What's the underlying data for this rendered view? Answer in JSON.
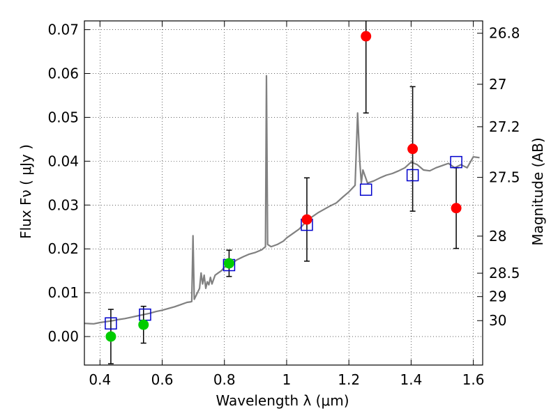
{
  "chart_data": {
    "type": "scatter",
    "xlabel": "Wavelength  λ (μm)",
    "ylabel": "Flux  Fν  ( μJy )",
    "ylabel_right": "Magnitude (AB)",
    "xlim": [
      0.35,
      1.63
    ],
    "ylim": [
      -0.0065,
      0.072
    ],
    "x_ticks": [
      0.4,
      0.6,
      0.8,
      1.0,
      1.2,
      1.4,
      1.6
    ],
    "x_tick_labels": [
      "0.4",
      "0.6",
      "0.8",
      "1",
      "1.2",
      "1.4",
      "1.6"
    ],
    "y_ticks": [
      0.0,
      0.01,
      0.02,
      0.03,
      0.04,
      0.05,
      0.06,
      0.07
    ],
    "y_tick_labels": [
      "0.00",
      "0.01",
      "0.02",
      "0.03",
      "0.04",
      "0.05",
      "0.06",
      "0.07"
    ],
    "magnitude_ticks": [
      26.8,
      27.0,
      27.2,
      27.5,
      28.0,
      28.5,
      29.0,
      30.0
    ],
    "magnitude_tick_labels": [
      "26.8",
      "27",
      "27.2",
      "27.5",
      "28",
      "28.5",
      "29",
      "30"
    ],
    "grid": true,
    "series": [
      {
        "kind": "line",
        "color": "#808080",
        "points": [
          [
            0.35,
            0.003
          ],
          [
            0.38,
            0.0029
          ],
          [
            0.4,
            0.0032
          ],
          [
            0.42,
            0.0034
          ],
          [
            0.44,
            0.0036
          ],
          [
            0.46,
            0.0039
          ],
          [
            0.48,
            0.0041
          ],
          [
            0.5,
            0.0044
          ],
          [
            0.52,
            0.0047
          ],
          [
            0.54,
            0.005
          ],
          [
            0.56,
            0.0053
          ],
          [
            0.58,
            0.0057
          ],
          [
            0.6,
            0.006
          ],
          [
            0.62,
            0.0064
          ],
          [
            0.64,
            0.0068
          ],
          [
            0.66,
            0.0073
          ],
          [
            0.68,
            0.0078
          ],
          [
            0.69,
            0.0079
          ],
          [
            0.695,
            0.008
          ],
          [
            0.699,
            0.023
          ],
          [
            0.703,
            0.0085
          ],
          [
            0.71,
            0.0095
          ],
          [
            0.72,
            0.011
          ],
          [
            0.725,
            0.0145
          ],
          [
            0.73,
            0.012
          ],
          [
            0.735,
            0.014
          ],
          [
            0.74,
            0.011
          ],
          [
            0.745,
            0.0125
          ],
          [
            0.75,
            0.0118
          ],
          [
            0.755,
            0.0135
          ],
          [
            0.76,
            0.012
          ],
          [
            0.77,
            0.014
          ],
          [
            0.78,
            0.0145
          ],
          [
            0.79,
            0.015
          ],
          [
            0.8,
            0.0158
          ],
          [
            0.82,
            0.0165
          ],
          [
            0.84,
            0.0175
          ],
          [
            0.86,
            0.0182
          ],
          [
            0.88,
            0.0188
          ],
          [
            0.9,
            0.0192
          ],
          [
            0.92,
            0.0198
          ],
          [
            0.932,
            0.0205
          ],
          [
            0.935,
            0.0595
          ],
          [
            0.939,
            0.021
          ],
          [
            0.95,
            0.0205
          ],
          [
            0.97,
            0.021
          ],
          [
            0.99,
            0.0218
          ],
          [
            1.0,
            0.0225
          ],
          [
            1.02,
            0.0235
          ],
          [
            1.04,
            0.0245
          ],
          [
            1.06,
            0.026
          ],
          [
            1.08,
            0.0272
          ],
          [
            1.1,
            0.0282
          ],
          [
            1.12,
            0.029
          ],
          [
            1.14,
            0.0298
          ],
          [
            1.16,
            0.0305
          ],
          [
            1.18,
            0.0318
          ],
          [
            1.2,
            0.033
          ],
          [
            1.22,
            0.0345
          ],
          [
            1.228,
            0.051
          ],
          [
            1.235,
            0.04
          ],
          [
            1.24,
            0.035
          ],
          [
            1.245,
            0.038
          ],
          [
            1.255,
            0.036
          ],
          [
            1.26,
            0.035
          ],
          [
            1.28,
            0.0355
          ],
          [
            1.3,
            0.0362
          ],
          [
            1.32,
            0.0368
          ],
          [
            1.34,
            0.0372
          ],
          [
            1.36,
            0.0378
          ],
          [
            1.38,
            0.0385
          ],
          [
            1.4,
            0.0398
          ],
          [
            1.42,
            0.0392
          ],
          [
            1.44,
            0.038
          ],
          [
            1.46,
            0.0378
          ],
          [
            1.48,
            0.0385
          ],
          [
            1.5,
            0.039
          ],
          [
            1.52,
            0.0395
          ],
          [
            1.54,
            0.0385
          ],
          [
            1.56,
            0.0392
          ],
          [
            1.58,
            0.0385
          ],
          [
            1.6,
            0.041
          ],
          [
            1.62,
            0.0408
          ]
        ]
      },
      {
        "kind": "open-square",
        "color": "#0000cc",
        "points": [
          [
            0.435,
            0.003
          ],
          [
            0.545,
            0.005
          ],
          [
            0.815,
            0.0163
          ],
          [
            1.065,
            0.0255
          ],
          [
            1.255,
            0.0335
          ],
          [
            1.405,
            0.0368
          ],
          [
            1.545,
            0.0398
          ]
        ]
      },
      {
        "kind": "filled-circle",
        "color": "#00cc00",
        "points": [
          {
            "x": 0.435,
            "y": 0.0,
            "err": 0.0062
          },
          {
            "x": 0.54,
            "y": 0.0027,
            "err": 0.0042
          },
          {
            "x": 0.815,
            "y": 0.0167,
            "err": 0.003
          }
        ]
      },
      {
        "kind": "filled-circle",
        "color": "#ff0000",
        "points": [
          {
            "x": 1.065,
            "y": 0.0267,
            "err": 0.0095
          },
          {
            "x": 1.255,
            "y": 0.0685,
            "err": 0.0175
          },
          {
            "x": 1.405,
            "y": 0.0428,
            "err": 0.0142
          },
          {
            "x": 1.545,
            "y": 0.0293,
            "err": 0.0092
          }
        ]
      }
    ]
  }
}
